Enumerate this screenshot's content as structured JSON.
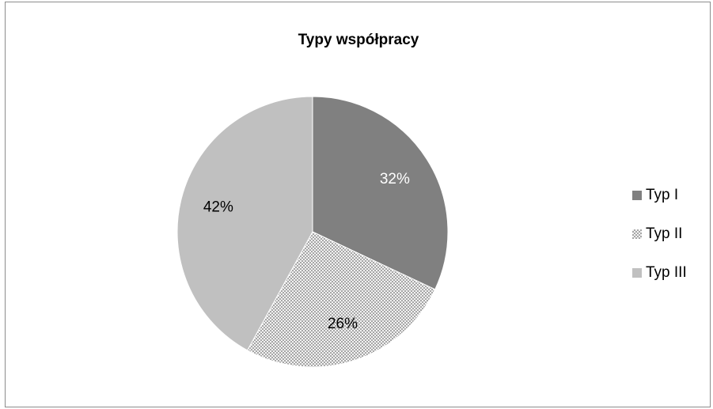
{
  "chart_data": {
    "type": "pie",
    "title": "Typy współpracy",
    "categories": [
      "Typ I",
      "Typ II",
      "Typ III"
    ],
    "values": [
      32,
      26,
      42
    ],
    "labels": [
      "32%",
      "26%",
      "42%"
    ],
    "colors": [
      "#808080",
      "#d9d9d9",
      "#c0c0c0"
    ],
    "label_colors": [
      "#ffffff",
      "#000000",
      "#000000"
    ],
    "patterns": [
      "solid",
      "checker",
      "solid"
    ],
    "legend_position": "right"
  }
}
